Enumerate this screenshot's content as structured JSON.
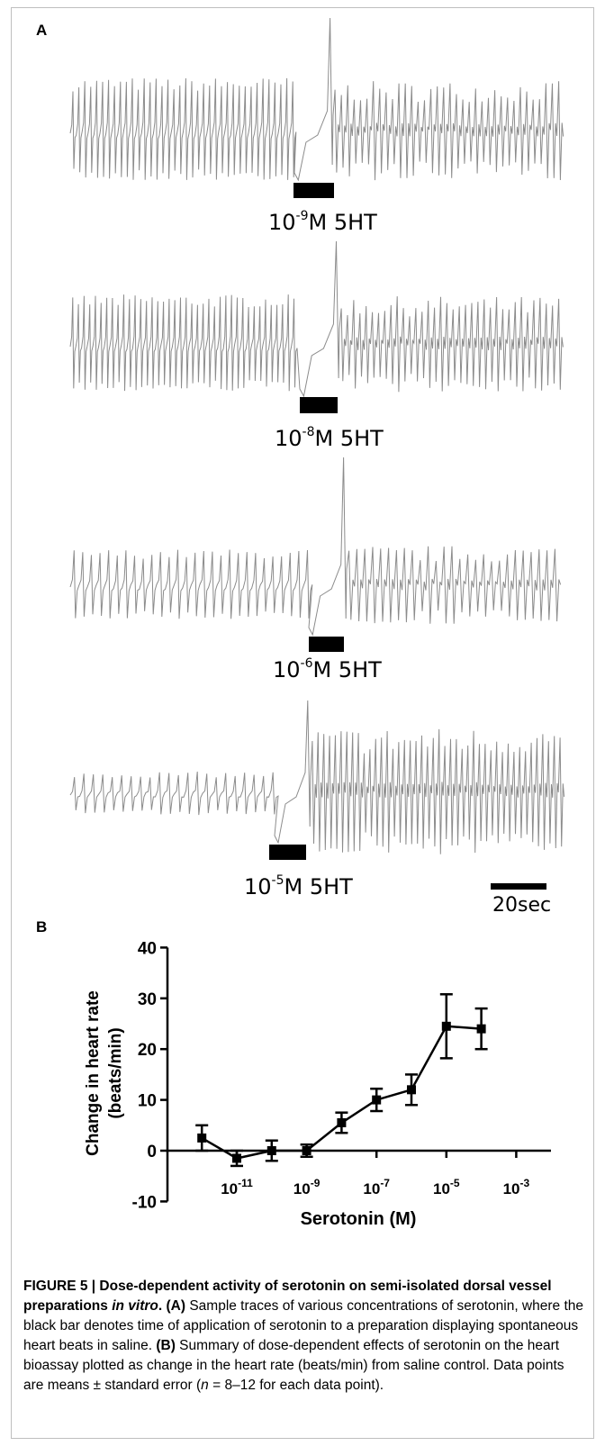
{
  "panel_a": {
    "letter": "A",
    "traces": [
      {
        "base": "10",
        "exponent": "-9",
        "suffix": "M 5HT"
      },
      {
        "base": "10",
        "exponent": "-8",
        "suffix": "M 5HT"
      },
      {
        "base": "10",
        "exponent": "-6",
        "suffix": "M 5HT"
      },
      {
        "base": "10",
        "exponent": "-5",
        "suffix": "M 5HT"
      }
    ],
    "scale_bar_label": "20sec"
  },
  "panel_b": {
    "letter": "B"
  },
  "chart_data": {
    "type": "line",
    "xlabel": "Serotonin (M)",
    "ylabel_line1": "Change in heart rate",
    "ylabel_line2": "(beats/min)",
    "x_scale": "log10",
    "xlim": [
      1e-13,
      0.01
    ],
    "ylim": [
      -10,
      40
    ],
    "y_ticks": [
      -10,
      0,
      10,
      20,
      30,
      40
    ],
    "x_ticks": [
      {
        "value": 1e-11,
        "base": "10",
        "exponent": "-11"
      },
      {
        "value": 1e-09,
        "base": "10",
        "exponent": "-9"
      },
      {
        "value": 1e-07,
        "base": "10",
        "exponent": "-7"
      },
      {
        "value": 1e-05,
        "base": "10",
        "exponent": "-5"
      },
      {
        "value": 0.001,
        "base": "10",
        "exponent": "-3"
      }
    ],
    "series": [
      {
        "x": [
          1e-12,
          1e-11,
          1e-10,
          1e-09,
          1e-08,
          1e-07,
          1e-06,
          1e-05,
          0.0001
        ],
        "y": [
          2.5,
          -1.5,
          0,
          0,
          5.5,
          10,
          12,
          24.5,
          24
        ],
        "error": [
          2.5,
          1.5,
          2.0,
          1.2,
          2.0,
          2.2,
          3.0,
          6.3,
          4.0
        ]
      }
    ],
    "grid": false,
    "legend": "none"
  },
  "caption": {
    "figure_label": "FIGURE 5 | Dose-dependent activity of serotonin on semi-isolated dorsal vessel preparations ",
    "title_italic": "in vitro",
    "title_end": ".",
    "part_a_label": " (A)",
    "part_a_text": " Sample traces of various concentrations of serotonin, where the black bar denotes time of application of serotonin to a preparation displaying spontaneous heart beats in saline.",
    "part_b_label": " (B)",
    "part_b_text": " Summary of dose-dependent effects of serotonin on the heart bioassay plotted as change in the heart rate (beats/min) from saline control. Data points are means ± standard error (",
    "n_italic": "n",
    "part_b_end": " = 8–12 for each data point)."
  }
}
